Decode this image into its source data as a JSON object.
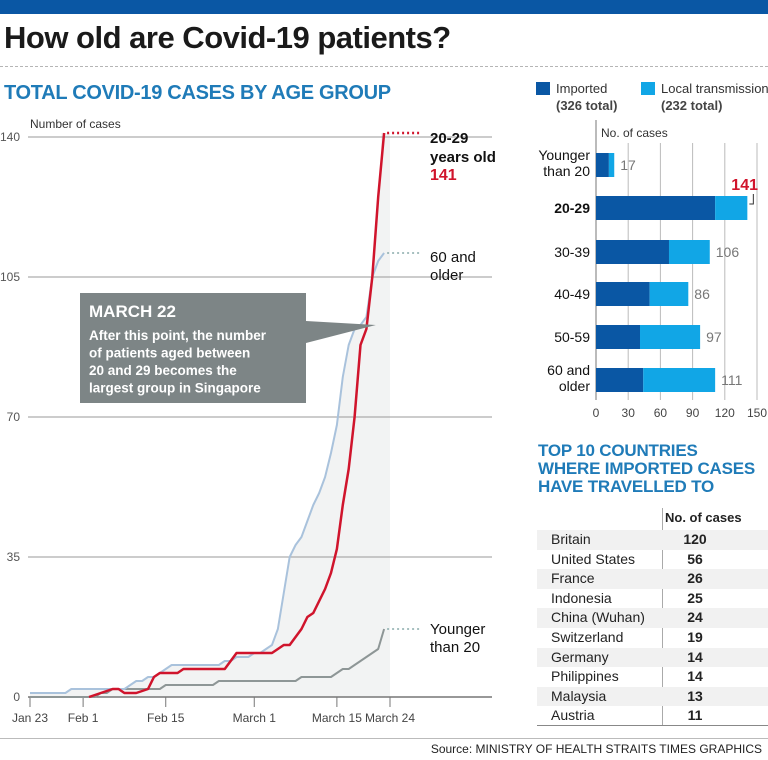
{
  "header": {
    "title": "How old are Covid-19 patients?",
    "subtitle": "TOTAL COVID-19 CASES BY AGE GROUP"
  },
  "colors": {
    "topbar": "#0a57a4",
    "imported": "#0a57a4",
    "local": "#11a6e6",
    "line_20_29": "#d0142c",
    "line_60_older": "#a9c2dc",
    "line_younger_20": "#8e9696",
    "annotation_bg": "#7d8586",
    "accent_title": "#1f7bb8"
  },
  "annotation": {
    "title": "MARCH 22",
    "body_lines": [
      "After this point, the number",
      "of patients aged between",
      "20 and 29 becomes the",
      "largest group in Singapore"
    ]
  },
  "line_labels": {
    "s20_29": [
      "20-29",
      "years old"
    ],
    "s20_29_value": "141",
    "s60": [
      "60 and",
      "older"
    ],
    "sYoung": [
      "Younger",
      "than 20"
    ]
  },
  "legend": {
    "imported_label": "Imported",
    "imported_total": "(326 total)",
    "local_label": "Local transmission",
    "local_total": "(232 total)"
  },
  "table": {
    "title_lines": [
      "TOP 10 COUNTRIES",
      "WHERE IMPORTED CASES",
      "HAVE TRAVELLED TO"
    ],
    "column_header": "No. of cases",
    "rows": [
      {
        "country": "Britain",
        "cases": "120"
      },
      {
        "country": "United States",
        "cases": "56"
      },
      {
        "country": "France",
        "cases": "26"
      },
      {
        "country": "Indonesia",
        "cases": "25"
      },
      {
        "country": "China (Wuhan)",
        "cases": "24"
      },
      {
        "country": "Switzerland",
        "cases": "19"
      },
      {
        "country": "Germany",
        "cases": "14"
      },
      {
        "country": "Philippines",
        "cases": "14"
      },
      {
        "country": "Malaysia",
        "cases": "13"
      },
      {
        "country": "Austria",
        "cases": "11"
      }
    ]
  },
  "source": "Source: MINISTRY OF HEALTH   STRAITS TIMES GRAPHICS",
  "chart_data": [
    {
      "type": "line",
      "title": "TOTAL COVID-19 CASES BY AGE GROUP",
      "ylabel": "Number of cases",
      "xlabel": "",
      "ylim": [
        0,
        140
      ],
      "yticks": [
        0,
        35,
        70,
        105,
        140
      ],
      "xticks": [
        {
          "label": "Jan 23",
          "day": 0
        },
        {
          "label": "Feb 1",
          "day": 9
        },
        {
          "label": "Feb 15",
          "day": 23
        },
        {
          "label": "March 1",
          "day": 38
        },
        {
          "label": "March 15",
          "day": 52
        },
        {
          "label": "March 24",
          "day": 61
        }
      ],
      "xlim_days": [
        0,
        61
      ],
      "grid": true,
      "shaded_region": "all series area under the 60+ line",
      "series": [
        {
          "name": "20-29 years old",
          "end_value": 141,
          "points": [
            [
              10,
              0
            ],
            [
              11,
              0.5
            ],
            [
              12,
              1
            ],
            [
              13,
              1.5
            ],
            [
              14,
              2
            ],
            [
              15,
              2
            ],
            [
              16,
              1
            ],
            [
              17,
              1
            ],
            [
              18,
              1
            ],
            [
              19,
              1.5
            ],
            [
              20,
              2
            ],
            [
              21,
              5
            ],
            [
              22,
              6
            ],
            [
              23,
              6
            ],
            [
              24,
              6
            ],
            [
              25,
              6
            ],
            [
              26,
              7
            ],
            [
              27,
              7
            ],
            [
              28,
              7
            ],
            [
              29,
              7
            ],
            [
              30,
              7
            ],
            [
              31,
              7
            ],
            [
              32,
              7
            ],
            [
              33,
              7
            ],
            [
              34,
              9
            ],
            [
              35,
              11
            ],
            [
              36,
              11
            ],
            [
              37,
              11
            ],
            [
              38,
              11
            ],
            [
              39,
              11
            ],
            [
              40,
              11
            ],
            [
              41,
              11
            ],
            [
              42,
              12
            ],
            [
              43,
              13
            ],
            [
              44,
              13
            ],
            [
              45,
              15
            ],
            [
              46,
              17
            ],
            [
              47,
              20
            ],
            [
              48,
              21
            ],
            [
              49,
              24
            ],
            [
              50,
              27
            ],
            [
              51,
              31
            ],
            [
              52,
              37
            ],
            [
              53,
              48
            ],
            [
              54,
              57
            ],
            [
              55,
              70
            ],
            [
              56,
              88
            ],
            [
              57,
              92
            ],
            [
              58,
              105
            ],
            [
              59,
              125
            ],
            [
              60,
              141
            ]
          ]
        },
        {
          "name": "60 and older",
          "end_value": 111,
          "points": [
            [
              0,
              1
            ],
            [
              6,
              1
            ],
            [
              7,
              2
            ],
            [
              10,
              2
            ],
            [
              11,
              2
            ],
            [
              12,
              2
            ],
            [
              13,
              2
            ],
            [
              14,
              2
            ],
            [
              15,
              2
            ],
            [
              16,
              2
            ],
            [
              17,
              3
            ],
            [
              18,
              4
            ],
            [
              19,
              4
            ],
            [
              20,
              5
            ],
            [
              21,
              5
            ],
            [
              22,
              6
            ],
            [
              23,
              7
            ],
            [
              24,
              8
            ],
            [
              25,
              8
            ],
            [
              26,
              8
            ],
            [
              27,
              8
            ],
            [
              28,
              8
            ],
            [
              29,
              8
            ],
            [
              30,
              8
            ],
            [
              31,
              8
            ],
            [
              32,
              8
            ],
            [
              33,
              9
            ],
            [
              34,
              9
            ],
            [
              35,
              10
            ],
            [
              36,
              10
            ],
            [
              37,
              10
            ],
            [
              38,
              11
            ],
            [
              39,
              11
            ],
            [
              40,
              12
            ],
            [
              41,
              13
            ],
            [
              42,
              17
            ],
            [
              43,
              26
            ],
            [
              44,
              35
            ],
            [
              45,
              38
            ],
            [
              46,
              40
            ],
            [
              47,
              44
            ],
            [
              48,
              48
            ],
            [
              49,
              51
            ],
            [
              50,
              55
            ],
            [
              51,
              61
            ],
            [
              52,
              68
            ],
            [
              53,
              80
            ],
            [
              54,
              88
            ],
            [
              55,
              92
            ],
            [
              56,
              93
            ],
            [
              57,
              95
            ],
            [
              58,
              105
            ],
            [
              59,
              109
            ],
            [
              60,
              111
            ]
          ]
        },
        {
          "name": "Younger than 20",
          "end_value": 17,
          "points": [
            [
              0,
              0
            ],
            [
              11,
              0
            ],
            [
              12,
              1
            ],
            [
              13,
              1
            ],
            [
              14,
              2
            ],
            [
              15,
              2
            ],
            [
              16,
              2
            ],
            [
              17,
              2
            ],
            [
              18,
              2
            ],
            [
              19,
              2
            ],
            [
              20,
              2
            ],
            [
              21,
              2
            ],
            [
              22,
              2
            ],
            [
              23,
              3
            ],
            [
              24,
              3
            ],
            [
              25,
              3
            ],
            [
              26,
              3
            ],
            [
              27,
              3
            ],
            [
              28,
              3
            ],
            [
              29,
              3
            ],
            [
              30,
              3
            ],
            [
              31,
              3
            ],
            [
              32,
              4
            ],
            [
              33,
              4
            ],
            [
              34,
              4
            ],
            [
              35,
              4
            ],
            [
              36,
              4
            ],
            [
              37,
              4
            ],
            [
              38,
              4
            ],
            [
              39,
              4
            ],
            [
              40,
              4
            ],
            [
              41,
              4
            ],
            [
              42,
              4
            ],
            [
              43,
              4
            ],
            [
              44,
              4
            ],
            [
              45,
              4
            ],
            [
              46,
              5
            ],
            [
              47,
              5
            ],
            [
              48,
              5
            ],
            [
              49,
              5
            ],
            [
              50,
              5
            ],
            [
              51,
              5
            ],
            [
              52,
              6
            ],
            [
              53,
              7
            ],
            [
              54,
              7
            ],
            [
              55,
              8
            ],
            [
              56,
              9
            ],
            [
              57,
              10
            ],
            [
              58,
              11
            ],
            [
              59,
              12
            ],
            [
              60,
              17
            ]
          ]
        }
      ]
    },
    {
      "type": "bar",
      "orientation": "horizontal",
      "stacked": true,
      "xlabel": "No. of cases",
      "xlim": [
        0,
        150
      ],
      "xticks": [
        0,
        30,
        60,
        90,
        120,
        150
      ],
      "categories": [
        "Younger than 20",
        "20-29",
        "30-39",
        "40-49",
        "50-59",
        "60 and older"
      ],
      "category_lines": [
        [
          "Younger",
          "than 20"
        ],
        [
          "20-29"
        ],
        [
          "30-39"
        ],
        [
          "40-49"
        ],
        [
          "50-59"
        ],
        [
          "60 and",
          "older"
        ]
      ],
      "highlight_category": "20-29",
      "totals": [
        17,
        141,
        106,
        86,
        97,
        111
      ],
      "series": [
        {
          "name": "Imported (326 total)",
          "values": [
            12,
            111,
            68,
            50,
            41,
            44
          ]
        },
        {
          "name": "Local transmission (232 total)",
          "values": [
            5,
            30,
            38,
            36,
            56,
            67
          ]
        }
      ]
    }
  ]
}
